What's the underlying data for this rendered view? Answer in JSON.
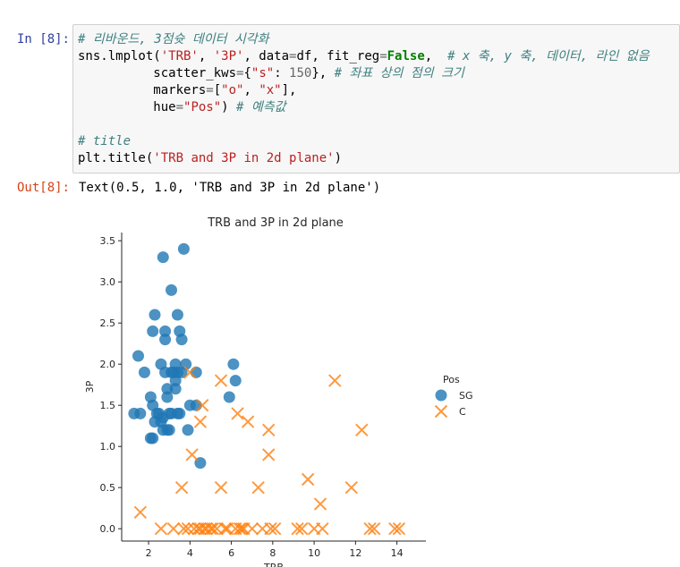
{
  "cell_in": {
    "prompt": "In [8]:",
    "code": [
      [
        {
          "t": "# 리바운드, 3점슛 데이터 시각화",
          "c": "cm"
        }
      ],
      [
        {
          "t": "sns.lmplot("
        },
        {
          "t": "'TRB'",
          "c": "st"
        },
        {
          "t": ", "
        },
        {
          "t": "'3P'",
          "c": "st"
        },
        {
          "t": ", data"
        },
        {
          "t": "=",
          "c": "op"
        },
        {
          "t": "df, fit_reg"
        },
        {
          "t": "=",
          "c": "op"
        },
        {
          "t": "False",
          "c": "kw"
        },
        {
          "t": ",  "
        },
        {
          "t": "# x 축, y 축, 데이터, 라인 없음",
          "c": "cm"
        }
      ],
      [
        {
          "t": "          scatter_kws"
        },
        {
          "t": "=",
          "c": "op"
        },
        {
          "t": "{"
        },
        {
          "t": "\"s\"",
          "c": "st"
        },
        {
          "t": ": "
        },
        {
          "t": "150",
          "c": "op"
        },
        {
          "t": "}, "
        },
        {
          "t": "# 좌표 상의 점의 크기",
          "c": "cm"
        }
      ],
      [
        {
          "t": "          markers"
        },
        {
          "t": "=",
          "c": "op"
        },
        {
          "t": "["
        },
        {
          "t": "\"o\"",
          "c": "st"
        },
        {
          "t": ", "
        },
        {
          "t": "\"x\"",
          "c": "st"
        },
        {
          "t": "],"
        }
      ],
      [
        {
          "t": "          hue"
        },
        {
          "t": "=",
          "c": "op"
        },
        {
          "t": "\"Pos\"",
          "c": "st"
        },
        {
          "t": ") "
        },
        {
          "t": "# 예측값",
          "c": "cm"
        }
      ],
      [
        {
          "t": ""
        }
      ],
      [
        {
          "t": "# title",
          "c": "cm"
        }
      ],
      [
        {
          "t": "plt.title("
        },
        {
          "t": "'TRB and 3P in 2d plane'",
          "c": "st"
        },
        {
          "t": ")"
        }
      ]
    ]
  },
  "cell_out": {
    "prompt": "Out[8]:",
    "text": "Text(0.5, 1.0, 'TRB and 3P in 2d plane')"
  },
  "chart_data": {
    "type": "scatter",
    "title": "TRB and 3P in 2d plane",
    "xlabel": "TRB",
    "ylabel": "3P",
    "xlim": [
      0.7,
      15.4
    ],
    "ylim": [
      -0.15,
      3.6
    ],
    "xticks": [
      2,
      4,
      6,
      8,
      10,
      12,
      14
    ],
    "yticks": [
      0.0,
      0.5,
      1.0,
      1.5,
      2.0,
      2.5,
      3.0,
      3.5
    ],
    "grid": false,
    "legend_title": "Pos",
    "legend_position": "right",
    "series": [
      {
        "name": "SG",
        "marker": "o",
        "color": "#1f77b4",
        "points": [
          [
            1.3,
            1.4
          ],
          [
            1.6,
            1.4
          ],
          [
            1.5,
            2.1
          ],
          [
            1.8,
            1.9
          ],
          [
            2.1,
            1.1
          ],
          [
            2.2,
            1.1
          ],
          [
            2.2,
            2.4
          ],
          [
            2.3,
            2.6
          ],
          [
            2.1,
            1.6
          ],
          [
            2.2,
            1.5
          ],
          [
            2.3,
            1.3
          ],
          [
            2.4,
            1.4
          ],
          [
            2.5,
            1.4
          ],
          [
            2.6,
            1.3
          ],
          [
            2.6,
            2.0
          ],
          [
            2.7,
            1.35
          ],
          [
            2.7,
            3.3
          ],
          [
            2.8,
            2.4
          ],
          [
            2.8,
            2.3
          ],
          [
            2.8,
            1.9
          ],
          [
            2.9,
            1.6
          ],
          [
            2.9,
            1.7
          ],
          [
            3.0,
            1.4
          ],
          [
            3.0,
            1.2
          ],
          [
            3.1,
            2.9
          ],
          [
            3.1,
            1.9
          ],
          [
            3.2,
            1.9
          ],
          [
            3.3,
            2.0
          ],
          [
            3.3,
            1.8
          ],
          [
            3.3,
            1.7
          ],
          [
            3.4,
            1.9
          ],
          [
            3.4,
            1.4
          ],
          [
            3.4,
            2.6
          ],
          [
            3.5,
            2.4
          ],
          [
            3.5,
            1.4
          ],
          [
            3.6,
            2.3
          ],
          [
            3.6,
            1.9
          ],
          [
            3.7,
            3.4
          ],
          [
            3.8,
            2.0
          ],
          [
            3.9,
            1.2
          ],
          [
            4.0,
            1.5
          ],
          [
            4.3,
            1.9
          ],
          [
            4.3,
            1.5
          ],
          [
            4.5,
            0.8
          ],
          [
            5.9,
            1.6
          ],
          [
            6.1,
            2.0
          ],
          [
            6.2,
            1.8
          ],
          [
            2.7,
            1.2
          ],
          [
            3.1,
            1.4
          ],
          [
            2.9,
            1.2
          ]
        ]
      },
      {
        "name": "C",
        "marker": "x",
        "color": "#ff7f0e",
        "points": [
          [
            1.6,
            0.2
          ],
          [
            2.6,
            0.0
          ],
          [
            3.2,
            0.0
          ],
          [
            3.6,
            0.5
          ],
          [
            3.7,
            0.0
          ],
          [
            3.9,
            0.0
          ],
          [
            4.0,
            1.9
          ],
          [
            4.1,
            0.9
          ],
          [
            4.2,
            0.0
          ],
          [
            4.4,
            0.0
          ],
          [
            4.5,
            0.0
          ],
          [
            4.5,
            1.3
          ],
          [
            4.6,
            1.5
          ],
          [
            4.7,
            0.0
          ],
          [
            4.8,
            0.0
          ],
          [
            5.0,
            0.0
          ],
          [
            5.1,
            0.0
          ],
          [
            5.3,
            0.0
          ],
          [
            5.5,
            0.5
          ],
          [
            5.5,
            1.8
          ],
          [
            5.7,
            0.0
          ],
          [
            5.8,
            0.0
          ],
          [
            6.2,
            0.0
          ],
          [
            6.3,
            1.4
          ],
          [
            6.4,
            0.0
          ],
          [
            6.5,
            0.0
          ],
          [
            6.6,
            0.0
          ],
          [
            6.8,
            1.3
          ],
          [
            7.0,
            0.0
          ],
          [
            7.3,
            0.5
          ],
          [
            7.5,
            0.0
          ],
          [
            7.8,
            1.2
          ],
          [
            7.8,
            0.9
          ],
          [
            7.9,
            0.0
          ],
          [
            8.1,
            0.0
          ],
          [
            9.2,
            0.0
          ],
          [
            9.4,
            0.0
          ],
          [
            9.7,
            0.6
          ],
          [
            10.0,
            0.0
          ],
          [
            10.3,
            0.3
          ],
          [
            10.4,
            0.0
          ],
          [
            11.0,
            1.8
          ],
          [
            11.8,
            0.5
          ],
          [
            12.3,
            1.2
          ],
          [
            12.7,
            0.0
          ],
          [
            12.9,
            0.0
          ],
          [
            13.9,
            0.0
          ],
          [
            14.1,
            0.0
          ]
        ]
      }
    ]
  }
}
